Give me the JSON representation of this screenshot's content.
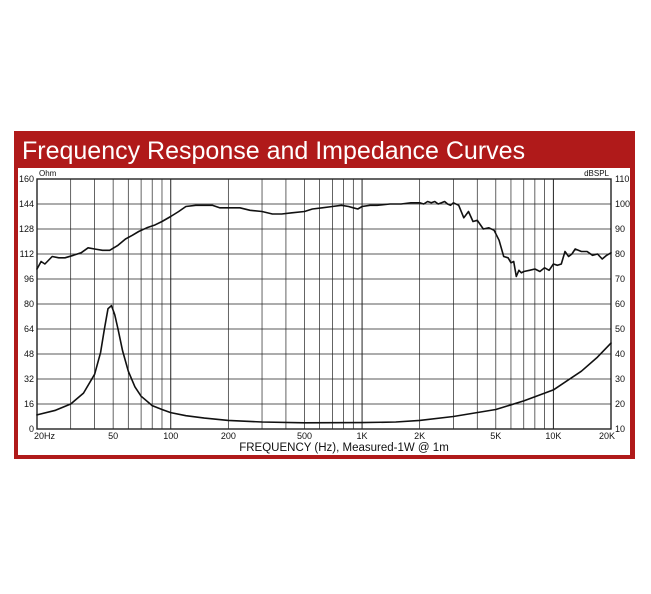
{
  "colors": {
    "frame": "#b01a1a",
    "title_text": "#ffffff",
    "grid": "#222222",
    "curve": "#111111"
  },
  "chart_data": {
    "type": "line",
    "title": "Frequency Response and Impedance Curves",
    "xlabel": "FREQUENCY (Hz), Measured-1W @ 1m",
    "x_scale": "log",
    "xlim": [
      20,
      20000
    ],
    "x_ticks": [
      {
        "value": 20,
        "label": "20Hz"
      },
      {
        "value": 50,
        "label": "50"
      },
      {
        "value": 100,
        "label": "100"
      },
      {
        "value": 200,
        "label": "200"
      },
      {
        "value": 500,
        "label": "500"
      },
      {
        "value": 1000,
        "label": "1K"
      },
      {
        "value": 2000,
        "label": "2K"
      },
      {
        "value": 5000,
        "label": "5K"
      },
      {
        "value": 10000,
        "label": "10K"
      },
      {
        "value": 20000,
        "label": "20K"
      }
    ],
    "left_axis": {
      "unit": "Ohm",
      "ylim": [
        0,
        160
      ],
      "ticks": [
        0,
        16,
        32,
        48,
        64,
        80,
        96,
        112,
        128,
        144,
        160
      ]
    },
    "right_axis": {
      "unit": "dBSPL",
      "ylim": [
        10,
        110
      ],
      "ticks": [
        10,
        20,
        30,
        40,
        50,
        60,
        70,
        80,
        90,
        100,
        110
      ]
    },
    "grid": true,
    "series": [
      {
        "axis": "right",
        "x": [
          20,
          21,
          22,
          24,
          26,
          28,
          31,
          34,
          37,
          40,
          44,
          48,
          53,
          58,
          63,
          68,
          75,
          82,
          90,
          100,
          110,
          120,
          135,
          150,
          165,
          180,
          200,
          230,
          260,
          300,
          340,
          380,
          430,
          500,
          550,
          620,
          700,
          780,
          850,
          900,
          950,
          1000,
          1100,
          1200,
          1400,
          1600,
          1800,
          2000,
          2100,
          2200,
          2300,
          2400,
          2500,
          2600,
          2700,
          2800,
          2900,
          3000,
          3200,
          3400,
          3600,
          3800,
          4000,
          4300,
          4600,
          4900,
          5200,
          5500,
          5800,
          6000,
          6200,
          6400,
          6600,
          6800,
          7000,
          7500,
          8000,
          8500,
          9000,
          9500,
          10000,
          10500,
          11000,
          11500,
          12000,
          12500,
          13000,
          14000,
          15000,
          16000,
          17000,
          18000,
          19000,
          20000
        ],
        "values": [
          74,
          77,
          76,
          79,
          78.5,
          78.5,
          79.5,
          80.5,
          82.5,
          82,
          81.5,
          81.5,
          83.5,
          86,
          87.5,
          89,
          90.5,
          91.5,
          93,
          95,
          97,
          99,
          99.5,
          99.5,
          99.5,
          98.5,
          98.5,
          98.5,
          97.5,
          97,
          96,
          96,
          96.5,
          97,
          98,
          98.5,
          99,
          99.5,
          99,
          98.5,
          98,
          99,
          99.5,
          99.5,
          100,
          100,
          100.5,
          100.5,
          100,
          101,
          100.5,
          101,
          100,
          100.5,
          101,
          100,
          99.5,
          100.5,
          99.5,
          94.5,
          97,
          93,
          93.5,
          90,
          90.5,
          89.5,
          85.5,
          79,
          78.5,
          76.5,
          77,
          71,
          73.5,
          72.5,
          73,
          73.5,
          74,
          73,
          74.5,
          73.5,
          76,
          75.5,
          76,
          81,
          79,
          80,
          82,
          81,
          81,
          79.5,
          80,
          78,
          79.5,
          80.5
        ]
      },
      {
        "axis": "left",
        "x": [
          20,
          25,
          30,
          35,
          40,
          43,
          45,
          47,
          49,
          51,
          53,
          56,
          60,
          65,
          70,
          80,
          90,
          100,
          120,
          150,
          200,
          300,
          500,
          1000,
          1500,
          2000,
          3000,
          5000,
          7000,
          10000,
          14000,
          17000,
          20000
        ],
        "values": [
          9,
          12,
          16,
          23,
          35,
          49,
          64,
          77,
          79,
          73,
          64,
          50,
          37,
          27,
          21,
          15,
          12.5,
          10.5,
          8.5,
          7,
          5.5,
          4.5,
          4,
          4.1,
          4.5,
          5.5,
          8,
          12.5,
          18,
          25,
          37,
          46,
          55
        ]
      }
    ]
  }
}
